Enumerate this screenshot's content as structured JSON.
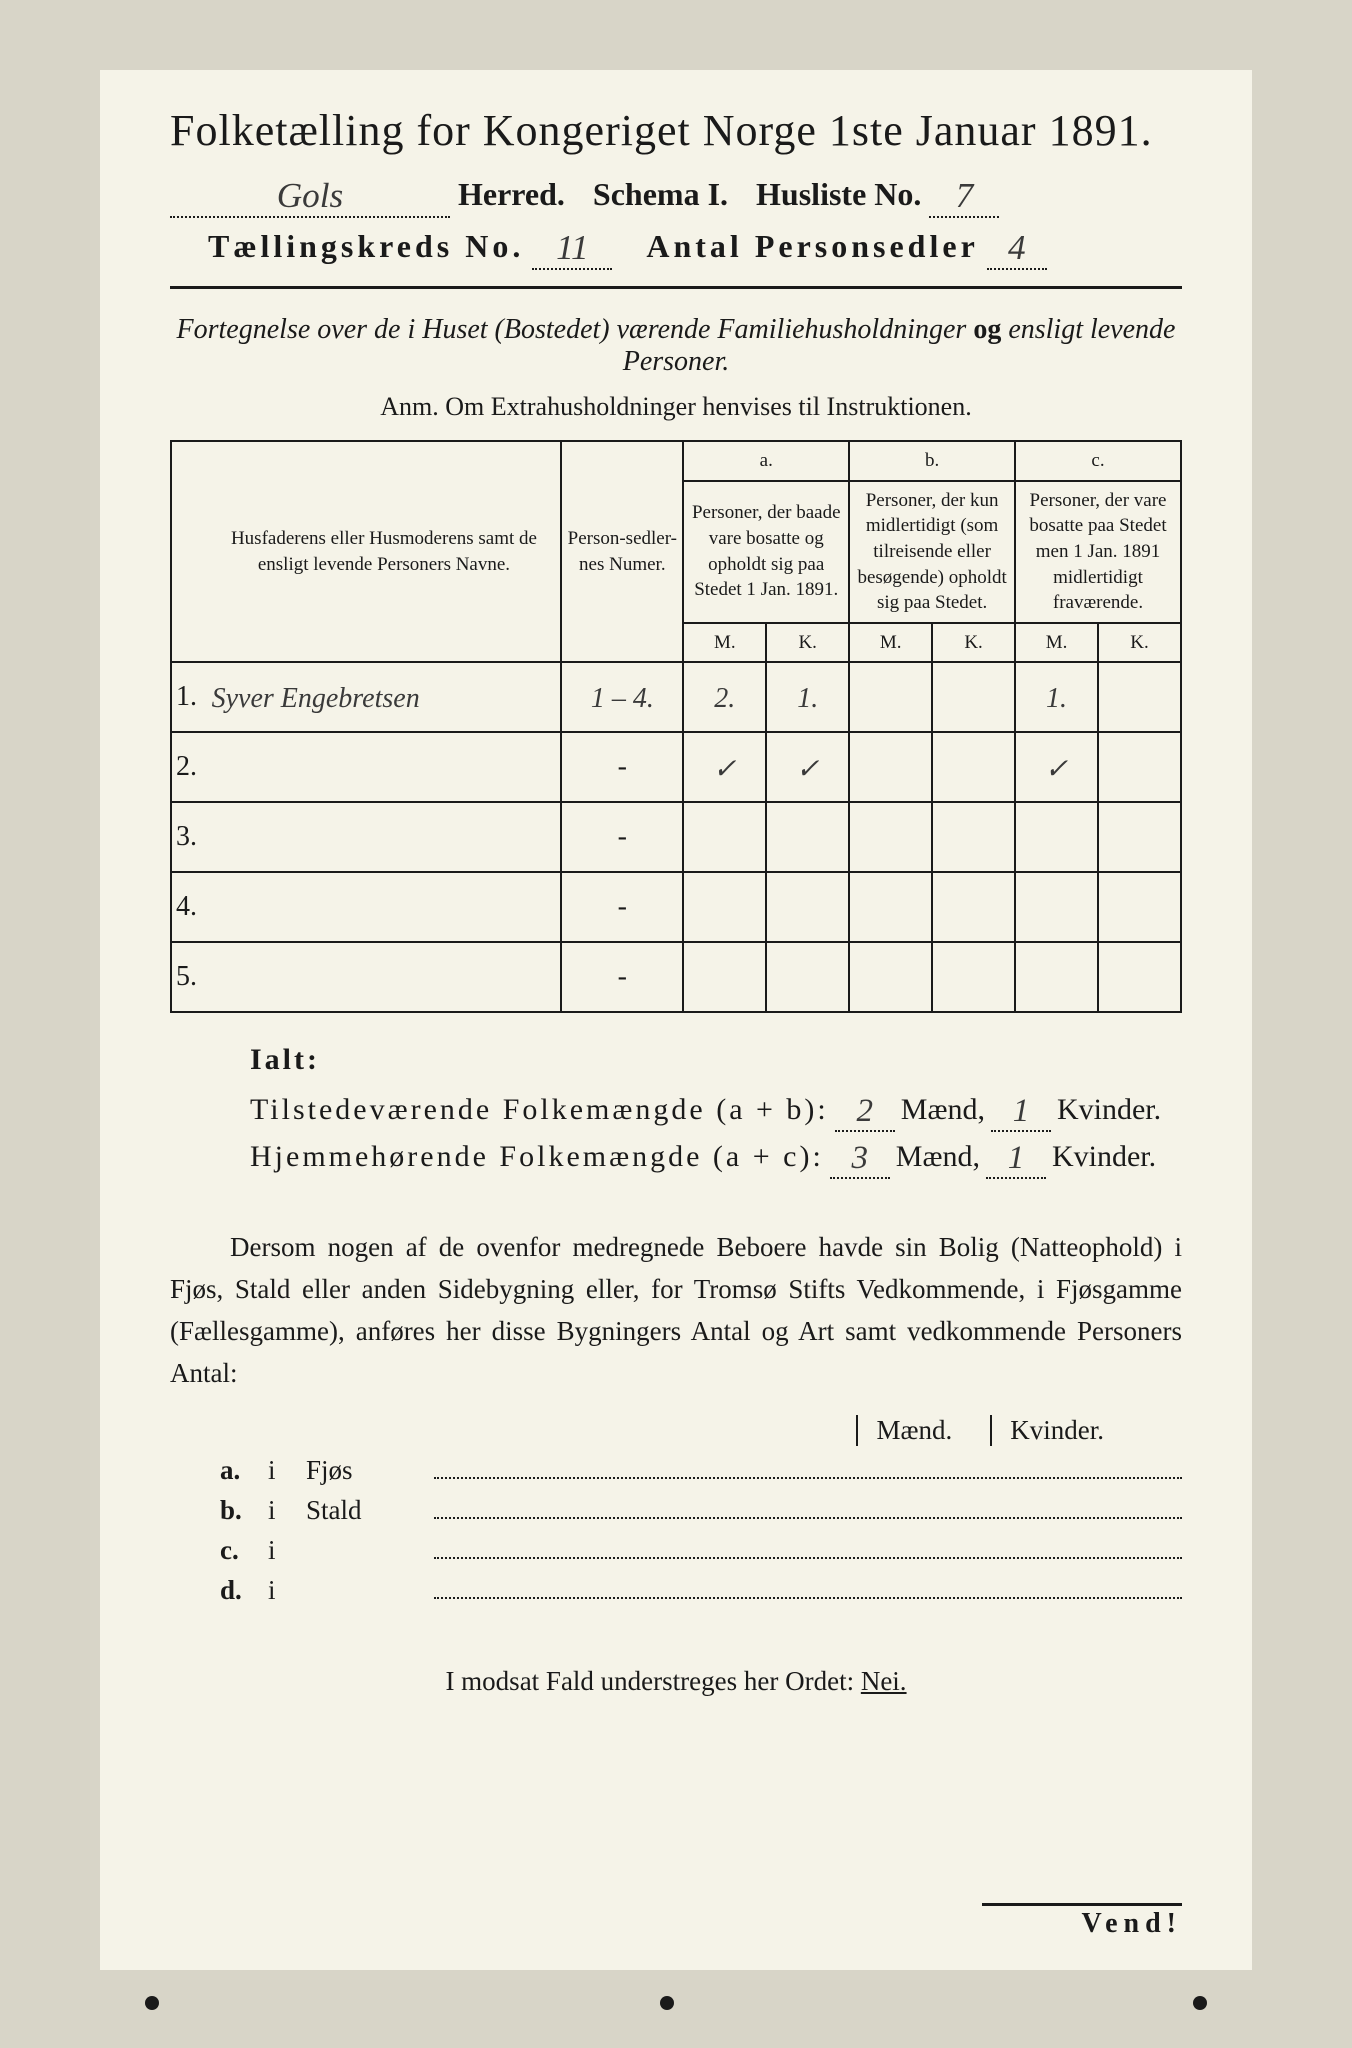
{
  "title": "Folketælling for Kongeriget Norge 1ste Januar 1891.",
  "header1": {
    "herred_value": "Gols",
    "herred_label": "Herred.",
    "schema_label": "Schema I.",
    "husliste_label": "Husliste No.",
    "husliste_value": "7"
  },
  "header2": {
    "kreds_label": "Tællingskreds No.",
    "kreds_value": "11",
    "antal_label": "Antal Personsedler",
    "antal_value": "4"
  },
  "sub1_a": "Fortegnelse over de i Huset (Bostedet) værende Familiehusholdninger ",
  "sub1_b": "og ",
  "sub1_c": "ensligt levende Personer.",
  "anm": "Anm. Om Extrahusholdninger henvises til Instruktionen.",
  "table": {
    "head_name": "Husfaderens eller Husmoderens samt de ensligt levende Personers Navne.",
    "head_num": "Person-sedler-nes Numer.",
    "col_a_top": "a.",
    "col_a": "Personer, der baade vare bosatte og opholdt sig paa Stedet 1 Jan. 1891.",
    "col_b_top": "b.",
    "col_b": "Personer, der kun midlertidigt (som tilreisende eller besøgende) opholdt sig paa Stedet.",
    "col_c_top": "c.",
    "col_c": "Personer, der vare bosatte paa Stedet men 1 Jan. 1891 midlertidigt fraværende.",
    "m": "M.",
    "k": "K.",
    "rows": [
      {
        "n": "1.",
        "name": "Syver Engebretsen",
        "numcell": "1 – 4.",
        "aM": "2.",
        "aK": "1.",
        "bM": "",
        "bK": "",
        "cM": "1.",
        "cK": ""
      },
      {
        "n": "2.",
        "name": "",
        "numcell": "-",
        "aM": "✓",
        "aK": "✓",
        "bM": "",
        "bK": "",
        "cM": "✓",
        "cK": ""
      },
      {
        "n": "3.",
        "name": "",
        "numcell": "-",
        "aM": "",
        "aK": "",
        "bM": "",
        "bK": "",
        "cM": "",
        "cK": ""
      },
      {
        "n": "4.",
        "name": "",
        "numcell": "-",
        "aM": "",
        "aK": "",
        "bM": "",
        "bK": "",
        "cM": "",
        "cK": ""
      },
      {
        "n": "5.",
        "name": "",
        "numcell": "-",
        "aM": "",
        "aK": "",
        "bM": "",
        "bK": "",
        "cM": "",
        "cK": ""
      }
    ]
  },
  "ialt": "Ialt:",
  "totals": {
    "line1_label": "Tilstedeværende Folkemængde (a + b):",
    "line2_label": "Hjemmehørende Folkemængde (a + c):",
    "maend": "Mænd,",
    "kvinder": "Kvinder.",
    "v1m": "2",
    "v1k": "1",
    "v2m": "3",
    "v2k": "1"
  },
  "paragraph": "Dersom nogen af de ovenfor medregnede Beboere havde sin Bolig (Natteophold) i Fjøs, Stald eller anden Sidebygning eller, for Tromsø Stifts Vedkommende, i Fjøsgamme (Fællesgamme), anføres her disse Bygningers Antal og Art samt vedkommende Personers Antal:",
  "buildings": {
    "maend": "Mænd.",
    "kvinder": "Kvinder.",
    "rows": [
      {
        "lbl": "a.",
        "i": "i",
        "type": "Fjøs"
      },
      {
        "lbl": "b.",
        "i": "i",
        "type": "Stald"
      },
      {
        "lbl": "c.",
        "i": "i",
        "type": ""
      },
      {
        "lbl": "d.",
        "i": "i",
        "type": ""
      }
    ]
  },
  "nei_line_a": "I modsat Fald understreges her Ordet: ",
  "nei_line_b": "Nei.",
  "vend": "Vend!",
  "colors": {
    "page_bg": "#f5f3e8",
    "outer_bg": "#d8d5c8",
    "ink": "#1a1a1a",
    "handwriting": "#3a3a3a"
  }
}
